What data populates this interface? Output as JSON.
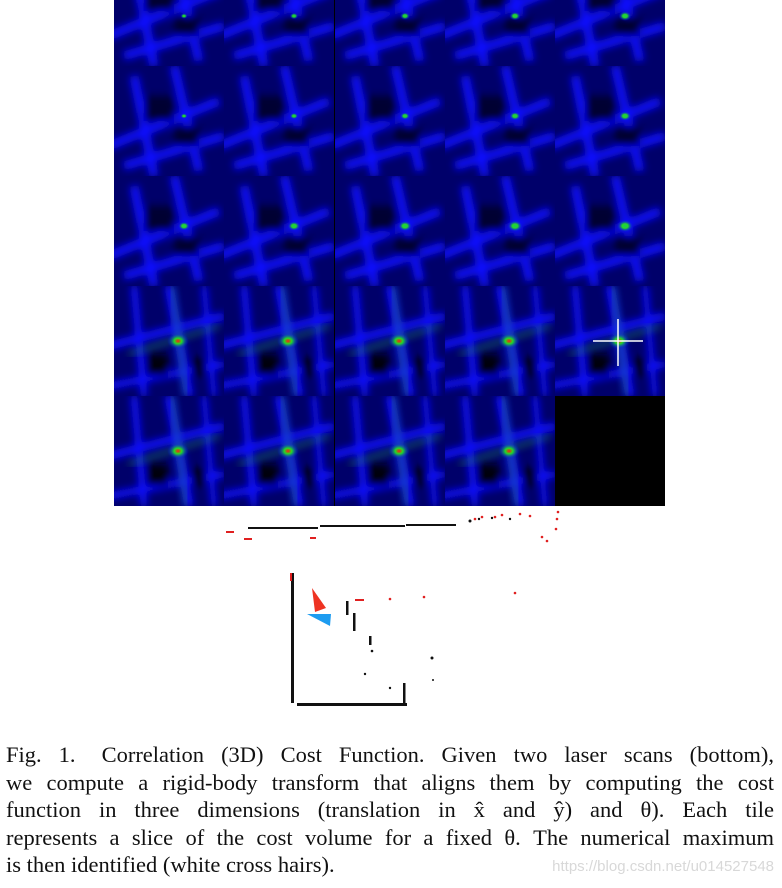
{
  "figure": {
    "description": "Grid of correlation cost-function slices (heatmap tiles, blue→green→red) above a laser scan plot",
    "grid": {
      "columns": 5,
      "rows": 5,
      "tile_count": 24,
      "empty_tile": "row 5, column 5 (black)",
      "crosshair_tile": "row 4, column 5",
      "colors": {
        "low": "#000010",
        "mid": "#0000ff",
        "high": "#22cc33",
        "peak": "#ff1010",
        "crosshair": "#ffffff"
      }
    },
    "scans": {
      "colors": {
        "scan_a": "#e02020",
        "scan_b": "#111111",
        "pose_a": "#ee3322",
        "pose_b": "#1e9cf0"
      }
    }
  },
  "caption": {
    "label": "Fig. 1.",
    "lines": [
      "Correlation (3D) Cost Function. Given two laser scans (bottom),",
      "we compute a rigid-body transform that aligns them by computing the cost",
      "function in three dimensions (translation in x̂ and ŷ) and θ). Each tile",
      "represents a slice of the cost volume for a fixed θ. The numerical maximum",
      "is then identified (white cross hairs)."
    ]
  },
  "watermark": "https://blog.csdn.net/u014527548"
}
